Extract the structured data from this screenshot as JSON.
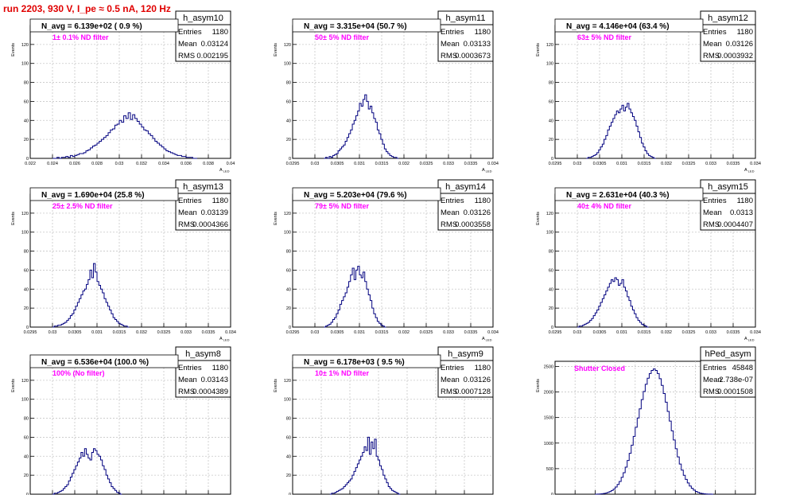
{
  "run_title": "run 2203,   930 V, I_pe ≈ 0.5 nA, 120 Hz",
  "common": {
    "y_axis_label": "Events",
    "x_axis_label": "A",
    "x_axis_label_sub": "LED",
    "stat_labels": [
      "Entries",
      "Mean",
      "RMS"
    ],
    "colors": {
      "histogram": "#00007f",
      "annotation": "#ff00ff",
      "title": "#e00000",
      "grid": "#c8c8c8"
    }
  },
  "chart_data": [
    {
      "type": "bar",
      "name": "h_asym10",
      "title": "h_asym10",
      "navg": "N_avg = 6.139e+02 ( 0.9 %)",
      "note": "1± 0.1% ND filter",
      "stats": {
        "entries": "1180",
        "mean": "0.03124",
        "rms": "0.002195"
      },
      "xlim": [
        0.022,
        0.04
      ],
      "ylim": [
        0,
        140
      ],
      "xticks": [
        "0.022",
        "0.024",
        "0.026",
        "0.028",
        "0.03",
        "0.032",
        "0.034",
        "0.036",
        "0.038",
        "0.04"
      ],
      "yticks": [
        "0",
        "20",
        "40",
        "60",
        "80",
        "100",
        "120"
      ],
      "x0": 0.024,
      "dx": 0.0002,
      "values": [
        0,
        0,
        1,
        0,
        1,
        1,
        2,
        1,
        3,
        2,
        3,
        4,
        5,
        5,
        6,
        8,
        9,
        11,
        13,
        14,
        16,
        18,
        20,
        22,
        24,
        27,
        30,
        31,
        35,
        36,
        40,
        38,
        45,
        42,
        48,
        41,
        46,
        42,
        39,
        36,
        33,
        30,
        29,
        26,
        24,
        21,
        18,
        16,
        14,
        12,
        10,
        8,
        7,
        6,
        5,
        4,
        3,
        3,
        2,
        2,
        1,
        1,
        1,
        0,
        0
      ]
    },
    {
      "type": "bar",
      "name": "h_asym11",
      "title": "h_asym11",
      "navg": "N_avg = 3.315e+04 (50.7 %)",
      "note": "50± 5% ND filter",
      "stats": {
        "entries": "1180",
        "mean": "0.03133",
        "rms": "0.0003673"
      },
      "xlim": [
        0.0295,
        0.034
      ],
      "ylim": [
        0,
        140
      ],
      "xticks": [
        "0.0295",
        "0.03",
        "0.0305",
        "0.031",
        "0.0315",
        "0.032",
        "0.0325",
        "0.033",
        "0.0335",
        "0.034"
      ],
      "yticks": [
        "0",
        "20",
        "40",
        "60",
        "80",
        "100",
        "120"
      ],
      "x0": 0.0302,
      "dx": 4e-05,
      "values": [
        0,
        1,
        0,
        2,
        1,
        3,
        4,
        5,
        8,
        10,
        12,
        14,
        18,
        22,
        26,
        30,
        36,
        40,
        45,
        50,
        58,
        55,
        62,
        67,
        60,
        52,
        55,
        48,
        42,
        38,
        30,
        26,
        20,
        15,
        10,
        7,
        5,
        3,
        2,
        1,
        1,
        0
      ]
    },
    {
      "type": "bar",
      "name": "h_asym12",
      "title": "h_asym12",
      "navg": "N_avg = 4.146e+04 (63.4 %)",
      "note": "63± 5% ND filter",
      "stats": {
        "entries": "1180",
        "mean": "0.03126",
        "rms": "0.0003932"
      },
      "xlim": [
        0.0295,
        0.034
      ],
      "ylim": [
        0,
        140
      ],
      "xticks": [
        "0.0295",
        "0.03",
        "0.0305",
        "0.031",
        "0.0315",
        "0.032",
        "0.0325",
        "0.033",
        "0.0335",
        "0.034"
      ],
      "yticks": [
        "0",
        "20",
        "40",
        "60",
        "80",
        "100",
        "120"
      ],
      "x0": 0.0302,
      "dx": 4e-05,
      "values": [
        0,
        1,
        1,
        2,
        3,
        4,
        6,
        9,
        12,
        15,
        20,
        24,
        30,
        34,
        38,
        42,
        46,
        50,
        48,
        52,
        56,
        50,
        54,
        58,
        52,
        48,
        44,
        40,
        34,
        28,
        22,
        16,
        12,
        8,
        5,
        3,
        2,
        1,
        0
      ]
    },
    {
      "type": "bar",
      "name": "h_asym13",
      "title": "h_asym13",
      "navg": "N_avg = 1.690e+04 (25.8 %)",
      "note": "25± 2.5% ND filter",
      "stats": {
        "entries": "1180",
        "mean": "0.03139",
        "rms": "0.0004366"
      },
      "xlim": [
        0.0295,
        0.034
      ],
      "ylim": [
        0,
        140
      ],
      "xticks": [
        "0.0295",
        "0.03",
        "0.0305",
        "0.031",
        "0.0315",
        "0.032",
        "0.0325",
        "0.033",
        "0.0335",
        "0.034"
      ],
      "yticks": [
        "0",
        "20",
        "40",
        "60",
        "80",
        "100",
        "120"
      ],
      "x0": 0.03,
      "dx": 4e-05,
      "values": [
        0,
        1,
        1,
        2,
        2,
        3,
        4,
        5,
        7,
        9,
        12,
        14,
        18,
        22,
        26,
        30,
        34,
        38,
        40,
        45,
        50,
        60,
        52,
        67,
        58,
        48,
        44,
        40,
        36,
        30,
        26,
        22,
        18,
        14,
        10,
        8,
        6,
        4,
        3,
        2,
        1,
        1,
        0
      ]
    },
    {
      "type": "bar",
      "name": "h_asym14",
      "title": "h_asym14",
      "navg": "N_avg = 5.203e+04 (79.6 %)",
      "note": "79± 5% ND filter",
      "stats": {
        "entries": "1180",
        "mean": "0.03126",
        "rms": "0.0003558"
      },
      "xlim": [
        0.0295,
        0.034
      ],
      "ylim": [
        0,
        140
      ],
      "xticks": [
        "0.0295",
        "0.03",
        "0.0305",
        "0.031",
        "0.0315",
        "0.032",
        "0.0325",
        "0.033",
        "0.0335",
        "0.034"
      ],
      "yticks": [
        "0",
        "20",
        "40",
        "60",
        "80",
        "100",
        "120"
      ],
      "x0": 0.0302,
      "dx": 4e-05,
      "values": [
        0,
        1,
        2,
        3,
        5,
        8,
        10,
        14,
        18,
        24,
        28,
        32,
        36,
        42,
        48,
        55,
        62,
        50,
        60,
        64,
        55,
        52,
        58,
        48,
        40,
        34,
        28,
        20,
        14,
        10,
        6,
        4,
        2,
        1,
        0
      ]
    },
    {
      "type": "bar",
      "name": "h_asym15",
      "title": "h_asym15",
      "navg": "N_avg = 2.631e+04 (40.3 %)",
      "note": "40± 4% ND filter",
      "stats": {
        "entries": "1180",
        "mean": "0.0313",
        "rms": "0.0004407"
      },
      "xlim": [
        0.0295,
        0.034
      ],
      "ylim": [
        0,
        140
      ],
      "xticks": [
        "0.0295",
        "0.03",
        "0.0305",
        "0.031",
        "0.0315",
        "0.032",
        "0.0325",
        "0.033",
        "0.0335",
        "0.034"
      ],
      "yticks": [
        "0",
        "20",
        "40",
        "60",
        "80",
        "100",
        "120"
      ],
      "x0": 0.03,
      "dx": 4e-05,
      "values": [
        0,
        1,
        1,
        2,
        3,
        4,
        5,
        7,
        9,
        12,
        15,
        18,
        22,
        26,
        30,
        34,
        38,
        42,
        46,
        50,
        48,
        52,
        50,
        44,
        46,
        50,
        42,
        38,
        32,
        28,
        22,
        18,
        14,
        10,
        7,
        5,
        3,
        2,
        1,
        0
      ]
    },
    {
      "type": "bar",
      "name": "h_asym8",
      "title": "h_asym8",
      "navg": "N_avg = 6.536e+04 (100.0 %)",
      "note": "100% (No filter)",
      "stats": {
        "entries": "1180",
        "mean": "0.03143",
        "rms": "0.0004389"
      },
      "xlim": [
        0.0295,
        0.034
      ],
      "ylim": [
        0,
        140
      ],
      "xticks": [
        "0.0295",
        "0.03",
        "0.0305",
        "0.031",
        "0.0315",
        "0.032",
        "0.0325",
        "0.033",
        "0.0335",
        "0.034"
      ],
      "yticks": [
        "0",
        "20",
        "40",
        "60",
        "80",
        "100",
        "120"
      ],
      "x0": 0.03,
      "dx": 4e-05,
      "values": [
        0,
        1,
        1,
        2,
        3,
        4,
        6,
        8,
        10,
        14,
        18,
        22,
        26,
        30,
        34,
        38,
        44,
        40,
        48,
        42,
        38,
        36,
        44,
        48,
        46,
        42,
        40,
        36,
        30,
        26,
        20,
        16,
        12,
        8,
        6,
        4,
        2,
        1,
        0
      ]
    },
    {
      "type": "bar",
      "name": "h_asym9",
      "title": "h_asym9",
      "navg": "N_avg = 6.178e+03 ( 9.5 %)",
      "note": "10± 1% ND filter",
      "stats": {
        "entries": "1180",
        "mean": "0.03126",
        "rms": "0.0007128"
      },
      "xlim": [
        0.028,
        0.035
      ],
      "ylim": [
        0,
        140
      ],
      "xticks": [
        "0.028",
        "0.029",
        "0.03",
        "0.031",
        "0.032",
        "0.033",
        "0.034",
        "0.035"
      ],
      "yticks": [
        "0",
        "20",
        "40",
        "60",
        "80",
        "100",
        "120"
      ],
      "x0": 0.0293,
      "dx": 6e-05,
      "values": [
        0,
        1,
        1,
        2,
        3,
        4,
        5,
        6,
        8,
        10,
        12,
        14,
        16,
        20,
        24,
        28,
        32,
        36,
        40,
        44,
        50,
        46,
        60,
        42,
        55,
        48,
        58,
        40,
        36,
        30,
        26,
        20,
        16,
        12,
        8,
        6,
        4,
        3,
        2,
        1,
        0
      ]
    },
    {
      "type": "bar",
      "name": "hPed_asym",
      "title": "hPed_asym",
      "navg": "",
      "note": "Shutter Closed",
      "stats": {
        "entries": "45848",
        "mean": "2.738e-07",
        "rms": "0.0001508"
      },
      "xlim": [
        -0.001,
        0.001
      ],
      "ylim": [
        0,
        2600
      ],
      "xticks": [
        "-0.001",
        "-0.0008",
        "-0.0006",
        "-0.0004",
        "-0.0002",
        "0",
        "0.0002",
        "0.0004",
        "0.0006",
        "0.0008",
        "0.001"
      ],
      "yticks": [
        "0",
        "500",
        "1000",
        "1500",
        "2000",
        "2500"
      ],
      "x0": -0.0006,
      "dx": 2e-05,
      "values": [
        0,
        2,
        4,
        8,
        14,
        22,
        34,
        50,
        72,
        100,
        140,
        190,
        250,
        330,
        420,
        530,
        660,
        800,
        960,
        1130,
        1310,
        1490,
        1670,
        1850,
        2010,
        2150,
        2270,
        2360,
        2420,
        2450,
        2420,
        2360,
        2260,
        2130,
        1970,
        1800,
        1620,
        1430,
        1240,
        1060,
        890,
        730,
        590,
        470,
        370,
        290,
        220,
        160,
        115,
        80,
        55,
        36,
        22,
        13,
        7,
        4,
        2,
        1,
        0
      ]
    }
  ]
}
